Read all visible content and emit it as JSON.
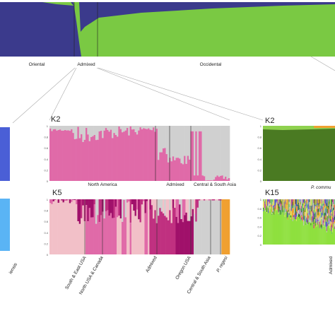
{
  "top_panel": {
    "labels": [
      "Oriental",
      "Admixed",
      "Occidental"
    ]
  },
  "left_panel": {
    "label": "iensis"
  },
  "middle_k2": {
    "title": "K2",
    "labels": [
      "North America",
      "Admixed",
      "Central & South Asia"
    ]
  },
  "middle_k5": {
    "title": "K5",
    "labels": [
      "South & East USA",
      "North USA & Canada",
      "Admixed",
      "Oregon USA",
      "Central & South Asia",
      "P. regesi"
    ]
  },
  "right_k2": {
    "title": "K2",
    "label": "P. commu"
  },
  "right_k15": {
    "title": "K15",
    "label": "Admixed"
  },
  "axis_ticks": [
    "1",
    "0.8",
    "0.6",
    "0.4",
    "0.2",
    "0"
  ]
}
